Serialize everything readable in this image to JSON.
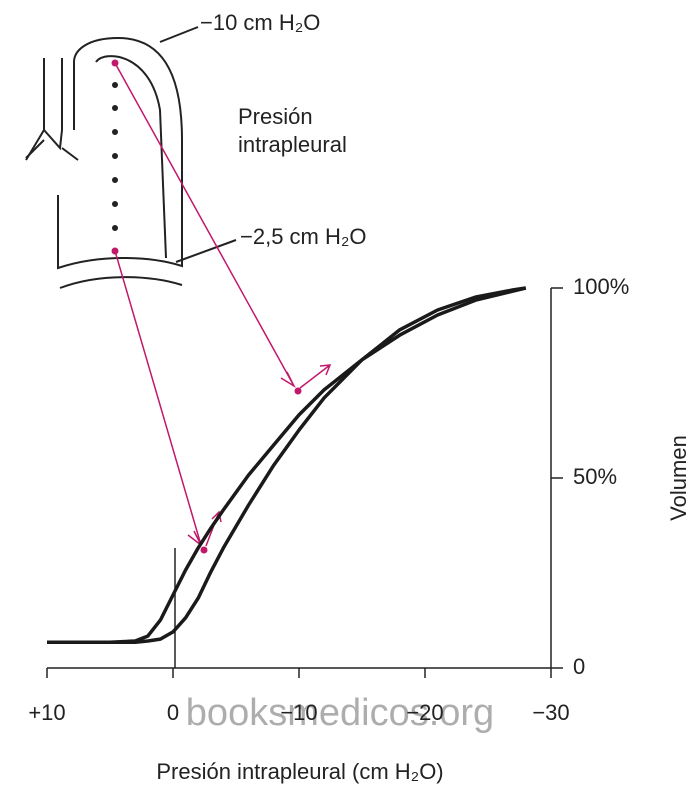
{
  "chart_data": {
    "type": "line",
    "x_label": "Presión intrapleural (cm H₂O)",
    "y_label": "Volumen",
    "annotations": [
      "−10 cm H₂O",
      "Presión intrapleural",
      "−2,5 cm H₂O"
    ],
    "watermark": "booksmedicos.org",
    "x": [
      10,
      5,
      3,
      2,
      1,
      0,
      -1,
      -2,
      -3,
      -4,
      -6,
      -8,
      -10,
      -12,
      -15,
      -18,
      -21,
      -24,
      -27,
      -28
    ],
    "series": [
      {
        "color": "#1a1a1a",
        "values": [
          6.8,
          6.8,
          7.1,
          8.4,
          12.6,
          19.2,
          25.8,
          31.6,
          36.8,
          41.6,
          50.8,
          58.7,
          66.6,
          73.2,
          81.1,
          87.6,
          92.9,
          96.8,
          99.2,
          100
        ]
      },
      {
        "color": "#1a1a1a",
        "values": [
          6.8,
          6.8,
          6.8,
          7.1,
          7.6,
          9.5,
          13.2,
          18.4,
          25.3,
          31.6,
          42.9,
          53.4,
          62.6,
          71.1,
          81.1,
          89.0,
          94.2,
          97.6,
          99.5,
          100
        ]
      }
    ],
    "xlim": [
      10,
      -30
    ],
    "xticks": [
      {
        "value": 10,
        "label": "+10"
      },
      0,
      {
        "value": -10,
        "label": "−10"
      },
      {
        "value": -20,
        "label": "−20"
      },
      {
        "value": -30,
        "label": "−30"
      }
    ],
    "ylim": [
      0,
      100
    ],
    "yticks": [
      0,
      {
        "value": 50,
        "label": "50%"
      },
      {
        "value": 100,
        "label": "100%"
      }
    ]
  }
}
